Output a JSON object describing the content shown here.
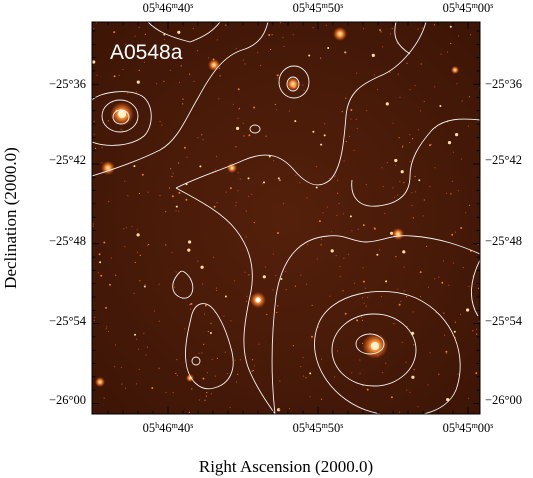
{
  "field_label": "A0548a",
  "axes": {
    "xlabel": "Right Ascension (2000.0)",
    "ylabel": "Declination (2000.0)",
    "ra_ticks": [
      {
        "h": "05",
        "m": "46",
        "s": "40"
      },
      {
        "h": "05",
        "m": "45",
        "s": "50"
      },
      {
        "h": "05",
        "m": "45",
        "s": "00"
      }
    ],
    "dec_ticks": [
      "−25°36",
      "−25°42",
      "−25°48",
      "−25°54",
      "−26°00"
    ]
  },
  "colors": {
    "sky_background": "#4a1a08",
    "contour": "#ffffff",
    "frame": "#000000"
  }
}
